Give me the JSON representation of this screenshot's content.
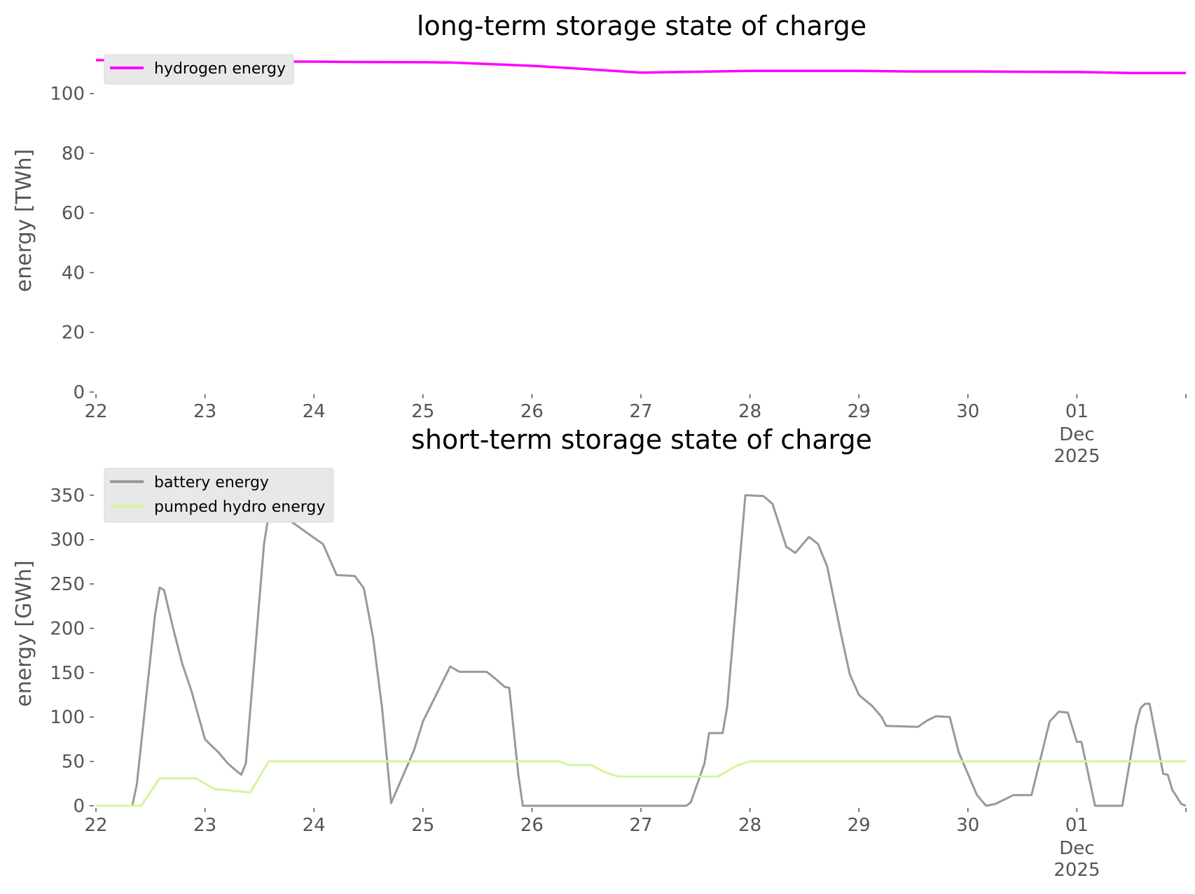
{
  "colors": {
    "hydrogen": "#ff00ff",
    "battery": "#999999",
    "pumped_hydro": "#d4f59a",
    "axis_text": "#555555",
    "legend_bg": "#e8e8e8"
  },
  "chart_data": [
    {
      "type": "line",
      "title": "long-term storage state of charge",
      "xlabel": "",
      "ylabel": "energy [TWh]",
      "ylim": [
        0,
        110
      ],
      "yticks": [
        0,
        20,
        40,
        60,
        80,
        100
      ],
      "xrange": [
        "2025-11-22",
        "2025-12-02"
      ],
      "xticks": [
        {
          "date": "2025-11-22",
          "label": "22"
        },
        {
          "date": "2025-11-23",
          "label": "23"
        },
        {
          "date": "2025-11-24",
          "label": "24"
        },
        {
          "date": "2025-11-25",
          "label": "25"
        },
        {
          "date": "2025-11-26",
          "label": "26"
        },
        {
          "date": "2025-11-27",
          "label": "27"
        },
        {
          "date": "2025-11-28",
          "label": "28"
        },
        {
          "date": "2025-11-29",
          "label": "29"
        },
        {
          "date": "2025-11-30",
          "label": "30"
        },
        {
          "date": "2025-12-01",
          "label": "01",
          "sub": [
            "Dec",
            "2025"
          ]
        },
        {
          "date": "2025-12-02",
          "label": ""
        }
      ],
      "grid": false,
      "legend_position": "top-left",
      "series": [
        {
          "name": "hydrogen energy",
          "color": "#ff00ff",
          "points": [
            [
              "2025-11-22T00:00",
              111.2
            ],
            [
              "2025-11-23T00:00",
              110.7
            ],
            [
              "2025-11-24T00:00",
              110.7
            ],
            [
              "2025-11-24T06:00",
              110.6
            ],
            [
              "2025-11-25T00:00",
              110.5
            ],
            [
              "2025-11-25T06:00",
              110.4
            ],
            [
              "2025-11-26T00:00",
              109.3
            ],
            [
              "2025-11-26T12:00",
              108.2
            ],
            [
              "2025-11-27T00:00",
              107.0
            ],
            [
              "2025-11-27T12:00",
              107.3
            ],
            [
              "2025-11-28T00:00",
              107.6
            ],
            [
              "2025-11-29T00:00",
              107.6
            ],
            [
              "2025-11-29T12:00",
              107.4
            ],
            [
              "2025-11-30T00:00",
              107.4
            ],
            [
              "2025-11-30T12:00",
              107.3
            ],
            [
              "2025-12-01T00:00",
              107.2
            ],
            [
              "2025-12-01T12:00",
              106.9
            ],
            [
              "2025-12-02T00:00",
              106.9
            ]
          ]
        }
      ]
    },
    {
      "type": "line",
      "title": "short-term storage state of charge",
      "xlabel": "",
      "ylabel": "energy [GWh]",
      "ylim": [
        0,
        370
      ],
      "yticks": [
        0,
        50,
        100,
        150,
        200,
        250,
        300,
        350
      ],
      "xrange": [
        "2025-11-22",
        "2025-12-02"
      ],
      "xticks": [
        {
          "date": "2025-11-22",
          "label": "22"
        },
        {
          "date": "2025-11-23",
          "label": "23"
        },
        {
          "date": "2025-11-24",
          "label": "24"
        },
        {
          "date": "2025-11-25",
          "label": "25"
        },
        {
          "date": "2025-11-26",
          "label": "26"
        },
        {
          "date": "2025-11-27",
          "label": "27"
        },
        {
          "date": "2025-11-28",
          "label": "28"
        },
        {
          "date": "2025-11-29",
          "label": "29"
        },
        {
          "date": "2025-11-30",
          "label": "30"
        },
        {
          "date": "2025-12-01",
          "label": "01",
          "sub": [
            "Dec",
            "2025"
          ]
        },
        {
          "date": "2025-12-02",
          "label": ""
        }
      ],
      "grid": false,
      "legend_position": "top-left",
      "series": [
        {
          "name": "battery energy",
          "color": "#999999",
          "points": [
            [
              "2025-11-22T00:00",
              0
            ],
            [
              "2025-11-22T08:00",
              0
            ],
            [
              "2025-11-22T09:00",
              24
            ],
            [
              "2025-11-22T13:00",
              215
            ],
            [
              "2025-11-22T14:00",
              246
            ],
            [
              "2025-11-22T15:00",
              243
            ],
            [
              "2025-11-22T17:00",
              200
            ],
            [
              "2025-11-22T19:00",
              160
            ],
            [
              "2025-11-22T21:00",
              130
            ],
            [
              "2025-11-23T00:00",
              75
            ],
            [
              "2025-11-23T03:00",
              60
            ],
            [
              "2025-11-23T05:00",
              48
            ],
            [
              "2025-11-23T07:00",
              39
            ],
            [
              "2025-11-23T08:00",
              35
            ],
            [
              "2025-11-23T09:00",
              48
            ],
            [
              "2025-11-23T13:00",
              295
            ],
            [
              "2025-11-23T14:00",
              327
            ],
            [
              "2025-11-23T15:00",
              335
            ],
            [
              "2025-11-24T00:00",
              302
            ],
            [
              "2025-11-24T02:00",
              295
            ],
            [
              "2025-11-24T05:00",
              260
            ],
            [
              "2025-11-24T09:00",
              259
            ],
            [
              "2025-11-24T11:00",
              245
            ],
            [
              "2025-11-24T13:00",
              190
            ],
            [
              "2025-11-24T15:00",
              110
            ],
            [
              "2025-11-24T17:00",
              3
            ],
            [
              "2025-11-24T18:00",
              15
            ],
            [
              "2025-11-24T22:00",
              62
            ],
            [
              "2025-11-25T00:00",
              95
            ],
            [
              "2025-11-25T06:00",
              157
            ],
            [
              "2025-11-25T08:00",
              151
            ],
            [
              "2025-11-25T14:00",
              151
            ],
            [
              "2025-11-25T16:00",
              143
            ],
            [
              "2025-11-25T18:00",
              134
            ],
            [
              "2025-11-25T19:00",
              133
            ],
            [
              "2025-11-25T21:00",
              35
            ],
            [
              "2025-11-25T22:00",
              0
            ],
            [
              "2025-11-27T10:00",
              0
            ],
            [
              "2025-11-27T11:00",
              4
            ],
            [
              "2025-11-27T14:00",
              48
            ],
            [
              "2025-11-27T15:00",
              82
            ],
            [
              "2025-11-27T18:00",
              82
            ],
            [
              "2025-11-27T19:00",
              112
            ],
            [
              "2025-11-27T23:00",
              350
            ],
            [
              "2025-11-28T03:00",
              349
            ],
            [
              "2025-11-28T05:00",
              340
            ],
            [
              "2025-11-28T08:00",
              292
            ],
            [
              "2025-11-28T10:00",
              285
            ],
            [
              "2025-11-28T13:00",
              303
            ],
            [
              "2025-11-28T15:00",
              295
            ],
            [
              "2025-11-28T17:00",
              270
            ],
            [
              "2025-11-28T20:00",
              195
            ],
            [
              "2025-11-28T22:00",
              148
            ],
            [
              "2025-11-29T00:00",
              125
            ],
            [
              "2025-11-29T03:00",
              112
            ],
            [
              "2025-11-29T05:00",
              100
            ],
            [
              "2025-11-29T06:00",
              90
            ],
            [
              "2025-11-29T13:00",
              89
            ],
            [
              "2025-11-29T15:00",
              96
            ],
            [
              "2025-11-29T17:00",
              101
            ],
            [
              "2025-11-29T20:00",
              100
            ],
            [
              "2025-11-29T22:00",
              60
            ],
            [
              "2025-11-30T02:00",
              12
            ],
            [
              "2025-11-30T04:00",
              0
            ],
            [
              "2025-11-30T06:00",
              2
            ],
            [
              "2025-11-30T10:00",
              12
            ],
            [
              "2025-11-30T14:00",
              12
            ],
            [
              "2025-11-30T18:00",
              95
            ],
            [
              "2025-11-30T20:00",
              106
            ],
            [
              "2025-11-30T22:00",
              105
            ],
            [
              "2025-12-01T00:00",
              72
            ],
            [
              "2025-12-01T01:00",
              72
            ],
            [
              "2025-12-01T04:00",
              0
            ],
            [
              "2025-12-01T10:00",
              0
            ],
            [
              "2025-12-01T13:00",
              90
            ],
            [
              "2025-12-01T14:00",
              110
            ],
            [
              "2025-12-01T15:00",
              115
            ],
            [
              "2025-12-01T16:00",
              115
            ],
            [
              "2025-12-01T19:00",
              36
            ],
            [
              "2025-12-01T20:00",
              35
            ],
            [
              "2025-12-01T21:00",
              18
            ],
            [
              "2025-12-01T23:00",
              2
            ],
            [
              "2025-12-02T00:00",
              0
            ]
          ]
        },
        {
          "name": "pumped hydro energy",
          "color": "#d4f59a",
          "points": [
            [
              "2025-11-22T00:00",
              0
            ],
            [
              "2025-11-22T10:00",
              0
            ],
            [
              "2025-11-22T14:00",
              31
            ],
            [
              "2025-11-22T22:00",
              31
            ],
            [
              "2025-11-23T02:00",
              19
            ],
            [
              "2025-11-23T06:00",
              17
            ],
            [
              "2025-11-23T10:00",
              15
            ],
            [
              "2025-11-23T14:00",
              50
            ],
            [
              "2025-11-26T06:00",
              50
            ],
            [
              "2025-11-26T08:00",
              46
            ],
            [
              "2025-11-26T13:00",
              46
            ],
            [
              "2025-11-26T16:00",
              38
            ],
            [
              "2025-11-26T19:00",
              33
            ],
            [
              "2025-11-27T17:00",
              33
            ],
            [
              "2025-11-27T21:00",
              45
            ],
            [
              "2025-11-28T00:00",
              50
            ],
            [
              "2025-12-02T00:00",
              50
            ]
          ]
        }
      ]
    }
  ]
}
